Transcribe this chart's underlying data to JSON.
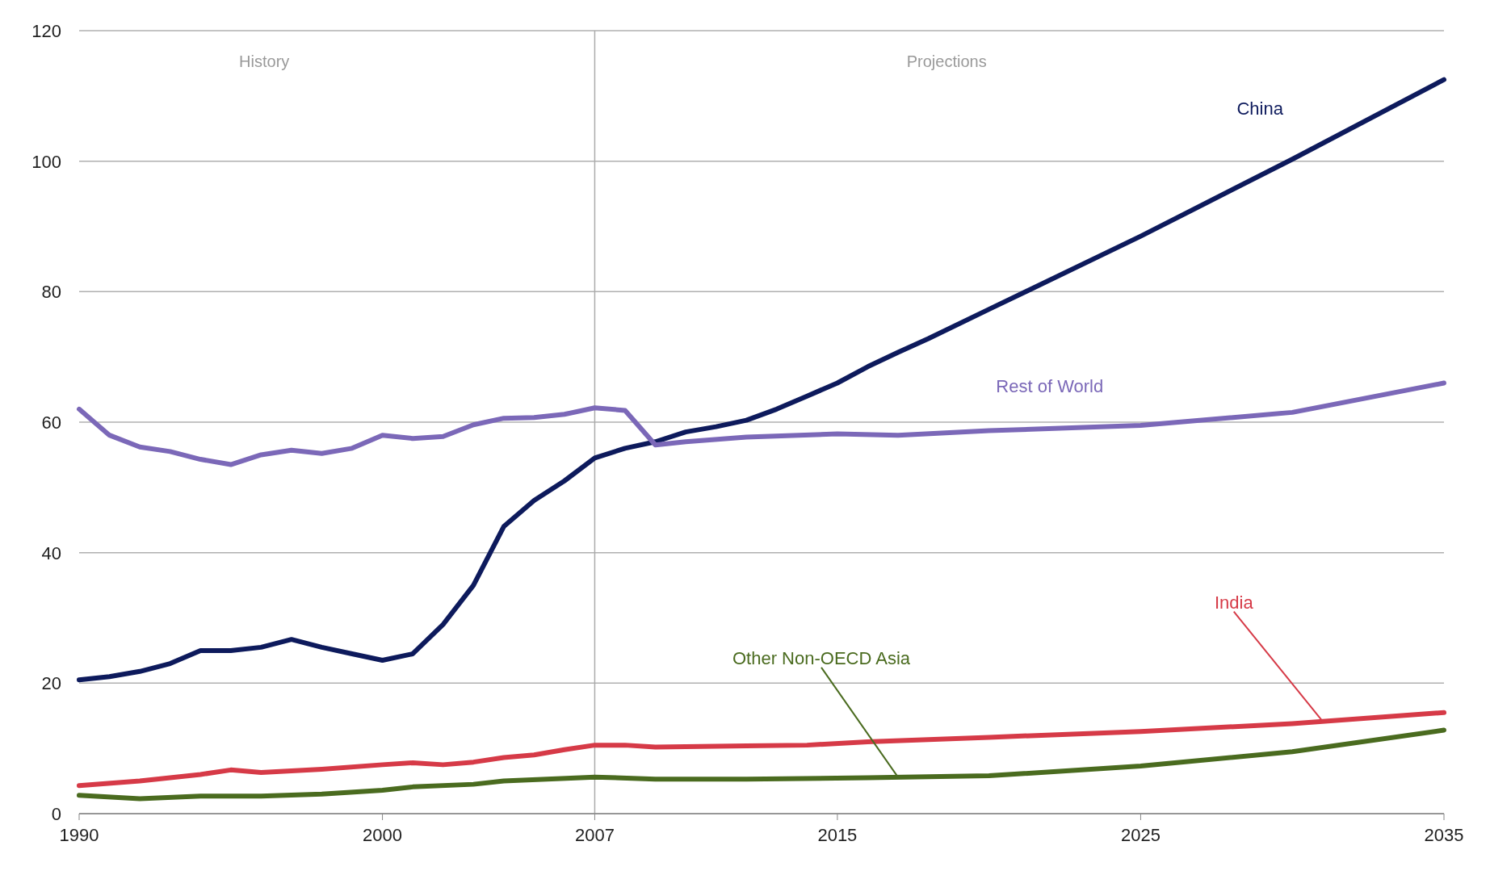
{
  "chart_data": {
    "type": "line",
    "xlim": [
      1990,
      2035
    ],
    "xticks": [
      1990,
      2000,
      2007,
      2015,
      2025,
      2035
    ],
    "ylim": [
      0,
      120
    ],
    "yticks": [
      0,
      20,
      40,
      60,
      80,
      100,
      120
    ],
    "grid": "y",
    "ref_lines": [
      {
        "axis": "x",
        "value": 2007,
        "color": "#aaaaaa"
      }
    ],
    "annotations": [
      "History",
      "Projections"
    ],
    "series": [
      {
        "name": "China",
        "color": "#0d1a5c",
        "x": [
          1990,
          1991,
          1992,
          1993,
          1994,
          1995,
          1996,
          1997,
          1998,
          1999,
          2000,
          2001,
          2002,
          2003,
          2004,
          2005,
          2006,
          2007,
          2008,
          2009,
          2010,
          2011,
          2012,
          2013,
          2014,
          2015,
          2016,
          2017,
          2018,
          2020,
          2025,
          2030,
          2035
        ],
        "values": [
          20.5,
          21,
          21.8,
          23,
          25,
          25,
          25.5,
          26.7,
          25.5,
          24.5,
          23.5,
          24.5,
          29,
          35,
          44,
          48,
          51,
          54.5,
          56,
          57,
          58.5,
          59.3,
          60.3,
          62,
          64,
          66,
          68.5,
          70.7,
          72.8,
          77.3,
          88.5,
          100.3,
          112.5
        ]
      },
      {
        "name": "Rest of World",
        "color": "#7b68b8",
        "x": [
          1990,
          1991,
          1992,
          1993,
          1994,
          1995,
          1996,
          1997,
          1998,
          1999,
          2000,
          2001,
          2002,
          2003,
          2004,
          2005,
          2006,
          2007,
          2008,
          2009,
          2010,
          2012,
          2015,
          2017,
          2020,
          2025,
          2030,
          2035
        ],
        "values": [
          62,
          58,
          56.2,
          55.5,
          54.3,
          53.5,
          55,
          55.7,
          55.2,
          56,
          58,
          57.5,
          57.8,
          59.6,
          60.6,
          60.7,
          61.2,
          62.2,
          61.8,
          56.5,
          57,
          57.7,
          58.2,
          58,
          58.7,
          59.5,
          61.5,
          66
        ]
      },
      {
        "name": "India",
        "color": "#d63a47",
        "x": [
          1990,
          1992,
          1994,
          1995,
          1996,
          1998,
          2000,
          2001,
          2002,
          2003,
          2004,
          2005,
          2006,
          2007,
          2008,
          2009,
          2012,
          2014,
          2016,
          2020,
          2025,
          2030,
          2035
        ],
        "values": [
          4.3,
          5,
          6,
          6.7,
          6.3,
          6.8,
          7.5,
          7.8,
          7.5,
          7.9,
          8.6,
          9,
          9.8,
          10.5,
          10.5,
          10.2,
          10.4,
          10.5,
          11,
          11.7,
          12.6,
          13.8,
          15.5
        ]
      },
      {
        "name": "Other Non-OECD Asia",
        "color": "#4a6b1f",
        "x": [
          1990,
          1992,
          1994,
          1996,
          1998,
          2000,
          2001,
          2003,
          2004,
          2007,
          2009,
          2012,
          2016,
          2020,
          2025,
          2030,
          2035
        ],
        "values": [
          2.8,
          2.3,
          2.7,
          2.7,
          3,
          3.6,
          4.1,
          4.5,
          5,
          5.6,
          5.3,
          5.3,
          5.5,
          5.8,
          7.3,
          9.5,
          12.8
        ]
      }
    ]
  }
}
